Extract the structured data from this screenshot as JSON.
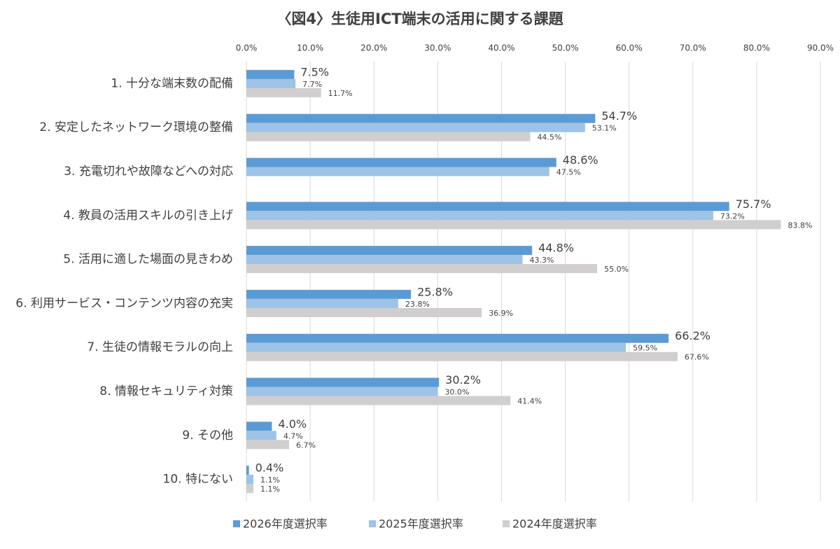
{
  "chart_data": {
    "type": "bar",
    "orientation": "horizontal",
    "title": "〈図4〉生徒用ICT端末の活用に関する課題",
    "categories": [
      "1. 十分な端末数の配備",
      "2. 安定したネットワーク環境の整備",
      "3. 充電切れや故障などへの対応",
      "4. 教員の活用スキルの引き上げ",
      "5. 活用に適した場面の見きわめ",
      "6. 利用サービス・コンテンツ内容の充実",
      "7. 生徒の情報モラルの向上",
      "8. 情報セキュリティ対策",
      "9. その他",
      "10. 特にない"
    ],
    "series": [
      {
        "name": "2026年度選択率",
        "color": "#5b9bd5",
        "values": [
          7.5,
          54.7,
          48.6,
          75.7,
          44.8,
          25.8,
          66.2,
          30.2,
          4.0,
          0.4
        ],
        "value_labels": [
          "7.5%",
          "54.7%",
          "48.6%",
          "75.7%",
          "44.8%",
          "25.8%",
          "66.2%",
          "30.2%",
          "4.0%",
          "0.4%"
        ]
      },
      {
        "name": "2025年度選択率",
        "color": "#9dc3e6",
        "values": [
          7.7,
          53.1,
          47.5,
          73.2,
          43.3,
          23.8,
          59.5,
          30.0,
          4.7,
          1.1
        ],
        "value_labels": [
          "7.7%",
          "53.1%",
          "47.5%",
          "73.2%",
          "43.3%",
          "23.8%",
          "59.5%",
          "30.0%",
          "4.7%",
          "1.1%"
        ]
      },
      {
        "name": "2024年度選択率",
        "color": "#d0cece",
        "values": [
          11.7,
          44.5,
          null,
          83.8,
          55.0,
          36.9,
          67.6,
          41.4,
          6.7,
          1.1
        ],
        "value_labels": [
          "11.7%",
          "44.5%",
          null,
          "83.8%",
          "55.0%",
          "36.9%",
          "67.6%",
          "41.4%",
          "6.7%",
          "1.1%"
        ]
      }
    ],
    "xlim": [
      0,
      90
    ],
    "xticks": [
      {
        "value": 0,
        "label": "0.0%"
      },
      {
        "value": 10,
        "label": "10.0%"
      },
      {
        "value": 20,
        "label": "20.0%"
      },
      {
        "value": 30,
        "label": "30.0%"
      },
      {
        "value": 40,
        "label": "40.0%"
      },
      {
        "value": 50,
        "label": "50.0%"
      },
      {
        "value": 60,
        "label": "60.0%"
      },
      {
        "value": 70,
        "label": "70.0%"
      },
      {
        "value": 80,
        "label": "80.0%"
      },
      {
        "value": 90,
        "label": "90.0%"
      }
    ],
    "grid": true,
    "legend": "bottom"
  }
}
